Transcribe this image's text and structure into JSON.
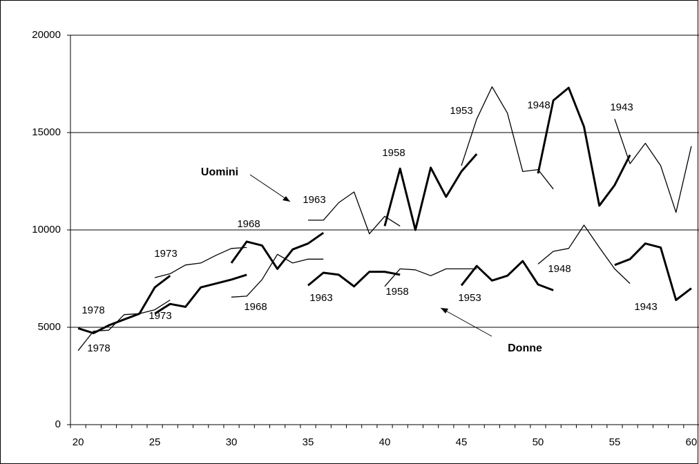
{
  "chart_data": {
    "type": "line",
    "annotations": [
      "Uomini",
      "Donne"
    ],
    "xlim": [
      19.5,
      60.5
    ],
    "xticks": [
      20,
      25,
      30,
      35,
      40,
      45,
      50,
      55,
      60
    ],
    "ylim": [
      0,
      20000
    ],
    "yticks": [
      0,
      5000,
      10000,
      15000,
      20000
    ],
    "grid": true,
    "series": [
      {
        "name": "1978",
        "color": "#000000",
        "line_width": 3,
        "x": [
          20,
          21,
          22,
          23,
          24,
          25,
          26
        ],
        "values": [
          4950,
          4700,
          5100,
          5400,
          5700,
          7050,
          7650
        ]
      },
      {
        "name": "1973",
        "color": "#000000",
        "line_width": 1.3,
        "x": [
          25,
          26,
          27,
          28,
          29,
          30,
          31
        ],
        "values": [
          7550,
          7750,
          8200,
          8300,
          8700,
          9050,
          9100
        ]
      },
      {
        "name": "1968",
        "color": "#000000",
        "line_width": 3,
        "x": [
          30,
          31,
          32,
          33,
          34,
          35,
          36
        ],
        "values": [
          8300,
          9400,
          9200,
          8000,
          9000,
          9300,
          9850
        ]
      },
      {
        "name": "1963",
        "color": "#000000",
        "line_width": 1.3,
        "x": [
          35,
          36,
          37,
          38,
          39,
          40,
          41
        ],
        "values": [
          10500,
          10500,
          11400,
          11950,
          9800,
          10700,
          10200
        ]
      },
      {
        "name": "1958",
        "color": "#000000",
        "line_width": 3,
        "x": [
          40,
          41,
          42,
          43,
          44,
          45,
          46
        ],
        "values": [
          10200,
          13150,
          10000,
          13200,
          11700,
          13000,
          13900
        ]
      },
      {
        "name": "1953",
        "color": "#000000",
        "line_width": 1.3,
        "x": [
          45,
          46,
          47,
          48,
          49,
          50,
          51
        ],
        "values": [
          13300,
          15700,
          17350,
          16000,
          13000,
          13100,
          12100
        ]
      },
      {
        "name": "1948",
        "color": "#000000",
        "line_width": 3,
        "x": [
          50,
          51,
          52,
          53,
          54,
          55,
          56
        ],
        "values": [
          12900,
          16650,
          17300,
          15300,
          11250,
          12300,
          13850
        ]
      },
      {
        "name": "1943",
        "color": "#000000",
        "line_width": 1.3,
        "x": [
          55,
          56,
          57,
          58,
          59,
          60
        ],
        "values": [
          15700,
          13400,
          14450,
          13300,
          10900,
          14300
        ]
      },
      {
        "name": "1978",
        "color": "#000000",
        "line_width": 1.3,
        "x": [
          20,
          21,
          22,
          23,
          24,
          25,
          26
        ],
        "values": [
          3800,
          4800,
          4850,
          5650,
          5700,
          5900,
          6400
        ]
      },
      {
        "name": "1973",
        "color": "#000000",
        "line_width": 3,
        "x": [
          25,
          26,
          27,
          28,
          29,
          30,
          31
        ],
        "values": [
          5700,
          6200,
          6050,
          7050,
          7250,
          7450,
          7700
        ]
      },
      {
        "name": "1968",
        "color": "#000000",
        "line_width": 1.3,
        "x": [
          30,
          31,
          32,
          33,
          34,
          35,
          36
        ],
        "values": [
          6550,
          6600,
          7450,
          8750,
          8300,
          8500,
          8500
        ]
      },
      {
        "name": "1963",
        "color": "#000000",
        "line_width": 3,
        "x": [
          35,
          36,
          37,
          38,
          39,
          40,
          41
        ],
        "values": [
          7150,
          7800,
          7700,
          7100,
          7850,
          7850,
          7700
        ]
      },
      {
        "name": "1958",
        "color": "#000000",
        "line_width": 1.3,
        "x": [
          40,
          41,
          42,
          43,
          44,
          45,
          46
        ],
        "values": [
          7100,
          8000,
          7950,
          7650,
          8000,
          8000,
          8000
        ]
      },
      {
        "name": "1953",
        "color": "#000000",
        "line_width": 3,
        "x": [
          45,
          46,
          47,
          48,
          49,
          50,
          51
        ],
        "values": [
          7150,
          8150,
          7400,
          7650,
          8400,
          7200,
          6900
        ]
      },
      {
        "name": "1948",
        "color": "#000000",
        "line_width": 1.3,
        "x": [
          50,
          51,
          52,
          53,
          54,
          55,
          56
        ],
        "values": [
          8250,
          8900,
          9050,
          10250,
          9100,
          8000,
          7250
        ]
      },
      {
        "name": "1943",
        "color": "#000000",
        "line_width": 3,
        "x": [
          55,
          56,
          57,
          58,
          59,
          60
        ],
        "values": [
          8200,
          8500,
          9300,
          9100,
          6400,
          7000
        ]
      }
    ]
  }
}
